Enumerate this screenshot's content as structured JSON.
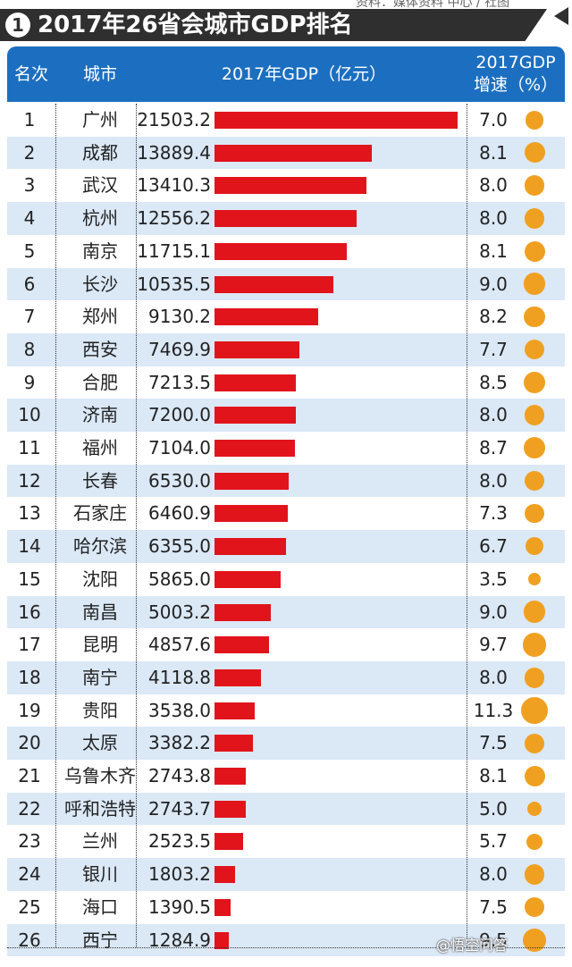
{
  "title": {
    "number": "1",
    "text": "2017年26省会城市GDP排名"
  },
  "corner_source": "资料：媒体资料 中心 / 社图",
  "headers": {
    "rank": "名次",
    "city": "城市",
    "gdp": "2017年GDP（亿元）",
    "rate_line1": "2017GDP",
    "rate_line2": "增速（%）"
  },
  "watermark": "@悟空问答",
  "colors": {
    "header_bg": "#1c6fc0",
    "bar": "#e1141c",
    "dot": "#f0a020",
    "row_alt": "#dbe8f6"
  },
  "chart_data": {
    "type": "table",
    "title": "2017年26省会城市GDP排名",
    "columns": [
      "名次",
      "城市",
      "2017年GDP（亿元）",
      "2017GDP增速（%）"
    ],
    "bar_column": "2017年GDP（亿元）",
    "dot_column": "2017GDP增速（%）",
    "gdp_max": 21503.2,
    "rows": [
      {
        "rank": "1",
        "city": "广州",
        "gdp": "21503.2",
        "rate": "7.0"
      },
      {
        "rank": "2",
        "city": "成都",
        "gdp": "13889.4",
        "rate": "8.1"
      },
      {
        "rank": "3",
        "city": "武汉",
        "gdp": "13410.3",
        "rate": "8.0"
      },
      {
        "rank": "4",
        "city": "杭州",
        "gdp": "12556.2",
        "rate": "8.0"
      },
      {
        "rank": "5",
        "city": "南京",
        "gdp": "11715.1",
        "rate": "8.1"
      },
      {
        "rank": "6",
        "city": "长沙",
        "gdp": "10535.5",
        "rate": "9.0"
      },
      {
        "rank": "7",
        "city": "郑州",
        "gdp": "9130.2",
        "rate": "8.2"
      },
      {
        "rank": "8",
        "city": "西安",
        "gdp": "7469.9",
        "rate": "7.7"
      },
      {
        "rank": "9",
        "city": "合肥",
        "gdp": "7213.5",
        "rate": "8.5"
      },
      {
        "rank": "10",
        "city": "济南",
        "gdp": "7200.0",
        "rate": "8.0"
      },
      {
        "rank": "11",
        "city": "福州",
        "gdp": "7104.0",
        "rate": "8.7"
      },
      {
        "rank": "12",
        "city": "长春",
        "gdp": "6530.0",
        "rate": "8.0"
      },
      {
        "rank": "13",
        "city": "石家庄",
        "gdp": "6460.9",
        "rate": "7.3"
      },
      {
        "rank": "14",
        "city": "哈尔滨",
        "gdp": "6355.0",
        "rate": "6.7"
      },
      {
        "rank": "15",
        "city": "沈阳",
        "gdp": "5865.0",
        "rate": "3.5"
      },
      {
        "rank": "16",
        "city": "南昌",
        "gdp": "5003.2",
        "rate": "9.0"
      },
      {
        "rank": "17",
        "city": "昆明",
        "gdp": "4857.6",
        "rate": "9.7"
      },
      {
        "rank": "18",
        "city": "南宁",
        "gdp": "4118.8",
        "rate": "8.0"
      },
      {
        "rank": "19",
        "city": "贵阳",
        "gdp": "3538.0",
        "rate": "11.3"
      },
      {
        "rank": "20",
        "city": "太原",
        "gdp": "3382.2",
        "rate": "7.5"
      },
      {
        "rank": "21",
        "city": "乌鲁木齐",
        "gdp": "2743.8",
        "rate": "8.1"
      },
      {
        "rank": "22",
        "city": "呼和浩特",
        "gdp": "2743.7",
        "rate": "5.0"
      },
      {
        "rank": "23",
        "city": "兰州",
        "gdp": "2523.5",
        "rate": "5.7"
      },
      {
        "rank": "24",
        "city": "银川",
        "gdp": "1803.2",
        "rate": "8.0"
      },
      {
        "rank": "25",
        "city": "海口",
        "gdp": "1390.5",
        "rate": "7.5"
      },
      {
        "rank": "26",
        "city": "西宁",
        "gdp": "1284.9",
        "rate": "9.5"
      }
    ]
  }
}
